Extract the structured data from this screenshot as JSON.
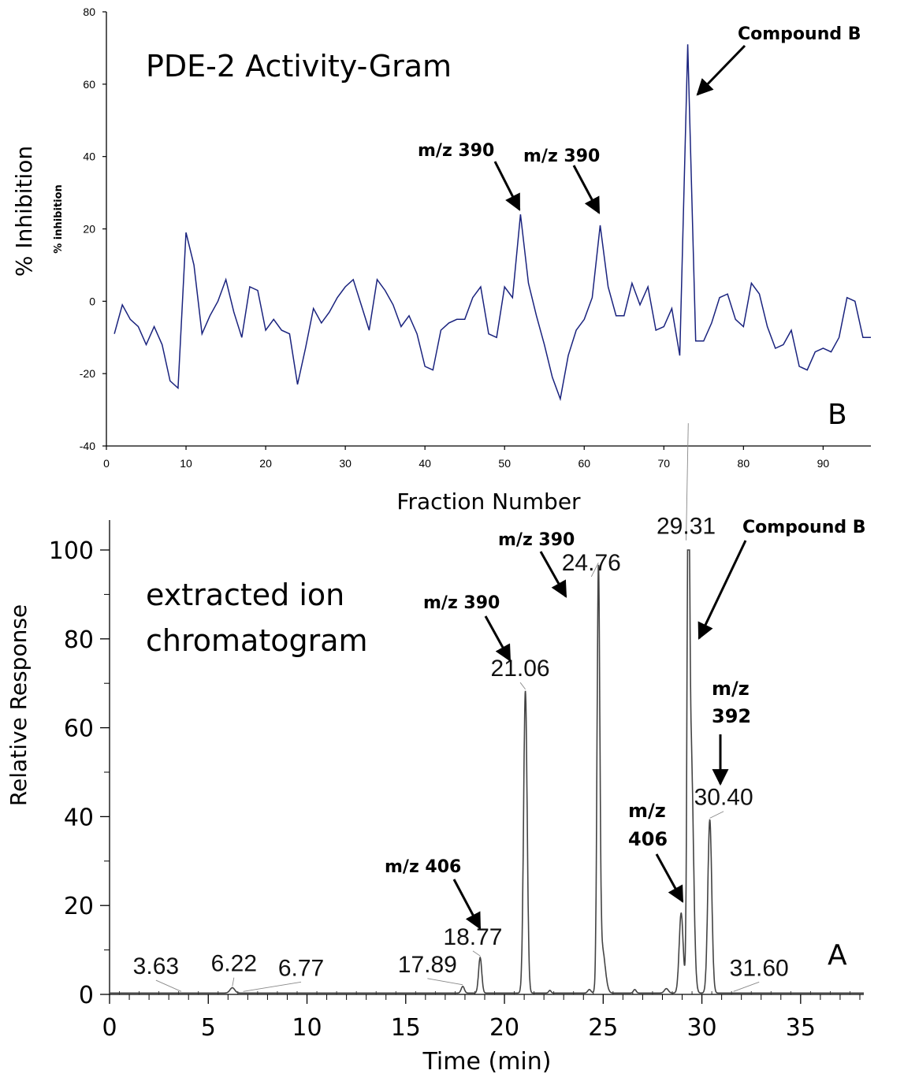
{
  "chart_data": [
    {
      "type": "line",
      "title": "PDE-2 Activity-Gram",
      "panel_letter": "B",
      "xlabel": "Fraction Number",
      "ylabel": "% Inhibition",
      "ylabel_small": "% inhibition",
      "xlim": [
        0,
        96
      ],
      "ylim": [
        -40,
        80
      ],
      "xticks": [
        0,
        10,
        20,
        30,
        40,
        50,
        60,
        70,
        80,
        90
      ],
      "yticks": [
        -40,
        -20,
        0,
        20,
        40,
        60,
        80
      ],
      "grid": false,
      "line_color": "#1a237e",
      "x": [
        1,
        2,
        3,
        4,
        5,
        6,
        7,
        8,
        9,
        10,
        11,
        12,
        13,
        14,
        15,
        16,
        17,
        18,
        19,
        20,
        21,
        22,
        23,
        24,
        25,
        26,
        27,
        28,
        29,
        30,
        31,
        32,
        33,
        34,
        35,
        36,
        37,
        38,
        39,
        40,
        41,
        42,
        43,
        44,
        45,
        46,
        47,
        48,
        49,
        50,
        51,
        52,
        53,
        54,
        55,
        56,
        57,
        58,
        59,
        60,
        61,
        62,
        63,
        64,
        65,
        66,
        67,
        68,
        69,
        70,
        71,
        72,
        73,
        74,
        75,
        76,
        77,
        78,
        79,
        80,
        81,
        82,
        83,
        84,
        85,
        86,
        87,
        88,
        89,
        90,
        91,
        92,
        93,
        94,
        95,
        96
      ],
      "y": [
        -9,
        -1,
        -5,
        -7,
        -12,
        -7,
        -12,
        -22,
        -24,
        19,
        10,
        -9,
        -4,
        0,
        6,
        -3,
        -10,
        4,
        3,
        -8,
        -5,
        -8,
        -9,
        -23,
        -13,
        -2,
        -6,
        -3,
        1,
        4,
        6,
        -1,
        -8,
        6,
        3,
        -1,
        -7,
        -4,
        -9,
        -18,
        -19,
        -8,
        -6,
        -5,
        -5,
        1,
        4,
        -9,
        -10,
        4,
        1,
        24,
        5,
        -4,
        -12,
        -21,
        -27,
        -15,
        -8,
        -5,
        1,
        21,
        4,
        -4,
        -4,
        5,
        -1,
        4,
        -8,
        -7,
        -2,
        -15,
        71,
        -11,
        -11,
        -6,
        1,
        2,
        -5,
        -7,
        5,
        2,
        -7,
        -13,
        -12,
        -8,
        -18,
        -19,
        -14,
        -13,
        -14,
        -10,
        1,
        0,
        -10,
        -10
      ],
      "annotations": [
        {
          "text": "m/z 390",
          "target_x": 52,
          "target_y": 24
        },
        {
          "text": "m/z 390",
          "target_x": 62,
          "target_y": 21
        },
        {
          "text": "Compound B",
          "target_x": 73,
          "target_y": 57
        }
      ]
    },
    {
      "type": "line",
      "title": "extracted ion chromatogram",
      "title_lines": [
        "extracted ion",
        "chromatogram"
      ],
      "panel_letter": "A",
      "xlabel": "Time (min)",
      "ylabel": "Relative Response",
      "xlim": [
        0,
        38.2
      ],
      "ylim": [
        0,
        100
      ],
      "xticks": [
        0,
        5,
        10,
        15,
        20,
        25,
        30,
        35
      ],
      "yticks": [
        0,
        20,
        40,
        60,
        80,
        100
      ],
      "grid": false,
      "line_color": "#444444",
      "baseline": 0.3,
      "peaks": [
        {
          "rt": 6.22,
          "height": 1.2,
          "width": 0.12
        },
        {
          "rt": 17.89,
          "height": 1.5,
          "width": 0.08
        },
        {
          "rt": 18.77,
          "height": 8,
          "width": 0.08
        },
        {
          "rt": 21.06,
          "height": 68,
          "width": 0.09
        },
        {
          "rt": 22.3,
          "height": 0.6,
          "width": 0.06
        },
        {
          "rt": 24.3,
          "height": 0.8,
          "width": 0.08
        },
        {
          "rt": 24.76,
          "height": 92,
          "width": 0.07
        },
        {
          "rt": 24.95,
          "height": 10,
          "width": 0.15
        },
        {
          "rt": 26.6,
          "height": 0.8,
          "width": 0.07
        },
        {
          "rt": 28.2,
          "height": 1.0,
          "width": 0.1
        },
        {
          "rt": 28.95,
          "height": 18,
          "width": 0.1
        },
        {
          "rt": 29.31,
          "height": 100,
          "width": 0.06
        },
        {
          "rt": 29.45,
          "height": 55,
          "width": 0.12
        },
        {
          "rt": 30.4,
          "height": 39,
          "width": 0.1
        }
      ],
      "peak_labels": [
        {
          "text": "3.63",
          "rt": 3.63,
          "tx": 2.35,
          "ty": 4.6
        },
        {
          "text": "6.22",
          "rt": 6.22,
          "tx": 6.3,
          "ty": 5.2
        },
        {
          "text": "6.77",
          "rt": 6.77,
          "tx": 9.7,
          "ty": 4.2
        },
        {
          "text": "17.89",
          "rt": 17.89,
          "tx": 16.1,
          "ty": 5.0
        },
        {
          "text": "18.77",
          "rt": 18.77,
          "tx": 18.4,
          "ty": 11.2
        },
        {
          "text": "21.06",
          "rt": 21.06,
          "tx": 20.8,
          "ty": 71.6
        },
        {
          "text": "24.76",
          "rt": 24.76,
          "tx": 24.4,
          "ty": 95.4
        },
        {
          "text": "29.31",
          "rt": 29.31,
          "tx": 29.2,
          "ty": 103.6
        },
        {
          "text": "30.40",
          "rt": 30.4,
          "tx": 31.1,
          "ty": 42.6
        },
        {
          "text": "31.60",
          "rt": 31.6,
          "tx": 32.9,
          "ty": 4.2
        }
      ],
      "annotations": [
        {
          "text": "m/z 390",
          "target_x": 21.0,
          "target_y": 75
        },
        {
          "text": "m/z 390",
          "target_x": 23.2,
          "target_y": 94
        },
        {
          "text": "Compound B",
          "target_x": 29.4,
          "target_y": 89
        },
        {
          "text": "m/z 392",
          "target_x": 31.0,
          "target_y": 47
        },
        {
          "text": "m/z 406",
          "target_x": 28.9,
          "target_y": 20
        },
        {
          "text": "m/z 406",
          "target_x": 18.9,
          "target_y": 13
        }
      ]
    }
  ]
}
